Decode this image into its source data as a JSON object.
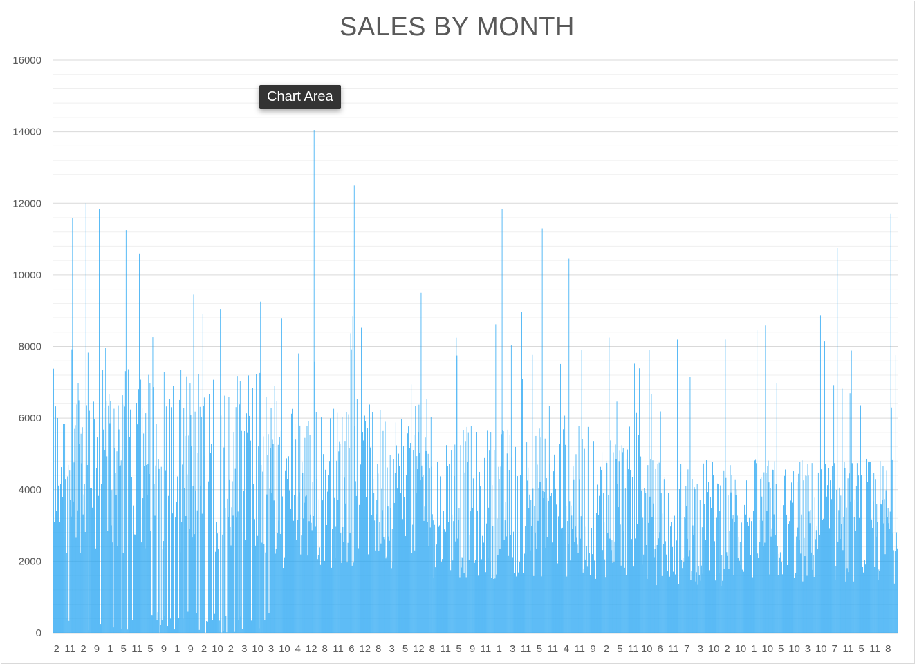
{
  "tooltip": "Chart Area",
  "chart_data": {
    "type": "bar",
    "title": "SALES BY MONTH",
    "xlabel": "",
    "ylabel": "",
    "ylim": [
      0,
      16000
    ],
    "y_ticks": [
      0,
      2000,
      4000,
      6000,
      8000,
      10000,
      12000,
      14000,
      16000
    ],
    "x_tick_labels": [
      "2",
      "11",
      "2",
      "9",
      "1",
      "5",
      "11",
      "5",
      "9",
      "1",
      "9",
      "2",
      "10",
      "2",
      "3",
      "10",
      "3",
      "10",
      "4",
      "12",
      "8",
      "11",
      "6",
      "12",
      "8",
      "3",
      "5",
      "12",
      "8",
      "11",
      "5",
      "9",
      "11",
      "1",
      "3",
      "11",
      "5",
      "11",
      "4",
      "11",
      "9",
      "2",
      "5",
      "11",
      "10",
      "6",
      "11",
      "7",
      "3",
      "10",
      "2",
      "10",
      "1",
      "10",
      "5",
      "10",
      "3",
      "10",
      "7",
      "11",
      "5",
      "11",
      "8"
    ],
    "grid": true,
    "legend": "none",
    "bar_color": "#1ea2f2",
    "bar_count": 1200,
    "series_peaks": [
      {
        "label_index": 0,
        "value": 5500
      },
      {
        "label_index": 1,
        "value": 11600
      },
      {
        "label_index": 2,
        "value": 12000
      },
      {
        "label_index": 3,
        "value": 11850
      },
      {
        "label_index": 5,
        "value": 11250
      },
      {
        "label_index": 6,
        "value": 10600
      },
      {
        "label_index": 10,
        "value": 9450
      },
      {
        "label_index": 12,
        "value": 9050
      },
      {
        "label_index": 15,
        "value": 9250
      },
      {
        "label_index": 19,
        "value": 14050
      },
      {
        "label_index": 22,
        "value": 12500
      },
      {
        "label_index": 27,
        "value": 9500
      },
      {
        "label_index": 33,
        "value": 11850
      },
      {
        "label_index": 36,
        "value": 11300
      },
      {
        "label_index": 38,
        "value": 10450
      },
      {
        "label_index": 41,
        "value": 8250
      },
      {
        "label_index": 44,
        "value": 7900
      },
      {
        "label_index": 49,
        "value": 9700
      },
      {
        "label_index": 52,
        "value": 8450
      },
      {
        "label_index": 58,
        "value": 10750
      },
      {
        "label_index": 62,
        "value": 11700
      }
    ]
  }
}
